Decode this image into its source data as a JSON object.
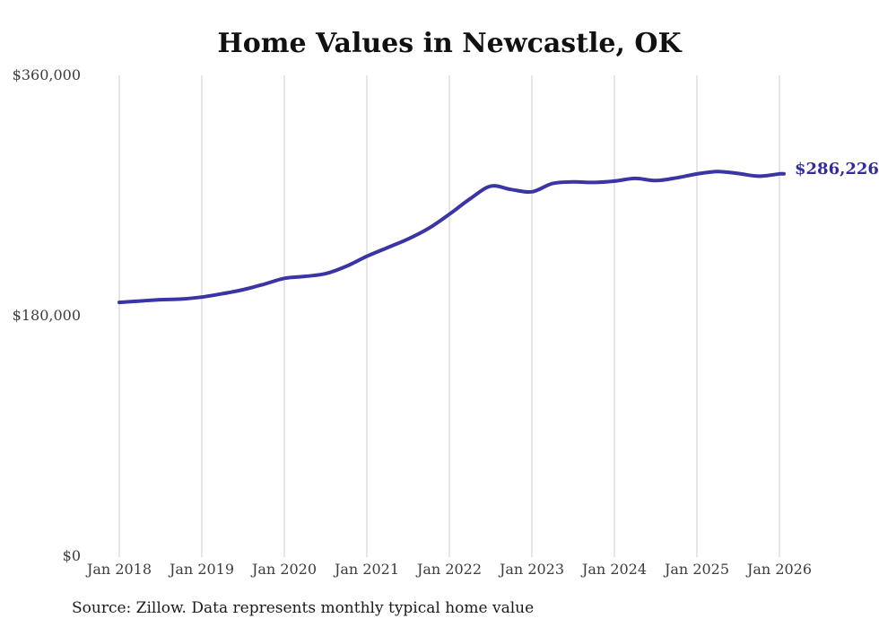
{
  "title": "Home Values in Newcastle, OK",
  "source_note": "Source: Zillow. Data represents monthly typical home value",
  "end_value_label": "$286,226",
  "colors": {
    "line": "#3a34a4",
    "end_label": "#332d9b",
    "grid": "#cccccc",
    "axis_text": "#3d3d3d",
    "title_text": "#111111",
    "background": "#ffffff"
  },
  "y_axis": {
    "ticks": [
      "$360,000",
      "$180,000",
      "$0"
    ]
  },
  "x_axis": {
    "ticks": [
      "Jan 2018",
      "Jan 2019",
      "Jan 2020",
      "Jan 2021",
      "Jan 2022",
      "Jan 2023",
      "Jan 2024",
      "Jan 2025",
      "Jan 2026"
    ]
  },
  "chart_data": {
    "type": "line",
    "title": "Home Values in Newcastle, OK",
    "xlabel": "",
    "ylabel": "",
    "ylim": [
      0,
      360000
    ],
    "grid": "vertical-only",
    "legend": "none",
    "line_series_name": "Typical home value (monthly)",
    "final_value": 286226,
    "final_value_label": "$286,226",
    "x": [
      "2018-01",
      "2018-04",
      "2018-07",
      "2018-10",
      "2019-01",
      "2019-04",
      "2019-07",
      "2019-10",
      "2020-01",
      "2020-04",
      "2020-07",
      "2020-10",
      "2021-01",
      "2021-04",
      "2021-07",
      "2021-10",
      "2022-01",
      "2022-04",
      "2022-07",
      "2022-10",
      "2023-01",
      "2023-04",
      "2023-07",
      "2023-10",
      "2024-01",
      "2024-04",
      "2024-07",
      "2024-10",
      "2025-01",
      "2025-04",
      "2025-07",
      "2025-10",
      "2026-01"
    ],
    "values": [
      190000,
      191000,
      192000,
      192500,
      194000,
      196500,
      199500,
      203500,
      208000,
      209500,
      211500,
      217000,
      224500,
      231000,
      237500,
      245500,
      256000,
      267500,
      277000,
      274500,
      272800,
      279000,
      280200,
      279800,
      280800,
      282800,
      281200,
      283200,
      286200,
      288000,
      286500,
      284500,
      286226
    ]
  }
}
